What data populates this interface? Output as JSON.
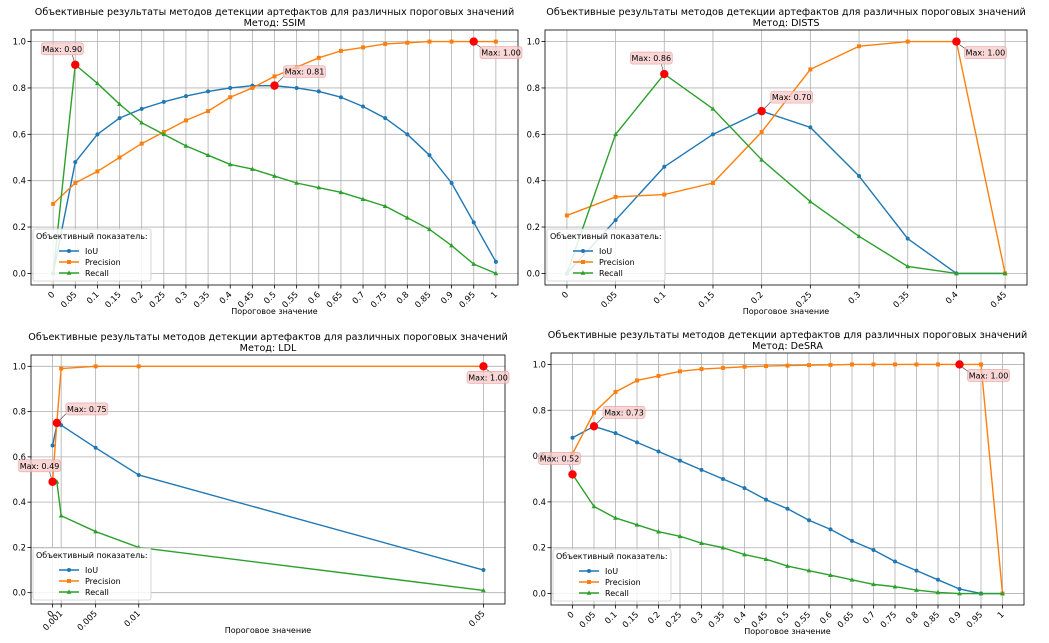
{
  "legend_title": "Объективный показатель:",
  "colors": {
    "IoU": "#1f77b4",
    "Precision": "#ff7f0e",
    "Recall": "#2ca02c",
    "marker": "#ff0000"
  },
  "chart_data": [
    {
      "type": "line",
      "title": "Объективные результаты методов детекции артефактов для различных пороговых значений",
      "subtitle": "Метод: SSIM",
      "xlabel": "Пороговое значение",
      "ylabel": "",
      "x": [
        0,
        0.05,
        0.1,
        0.15,
        0.2,
        0.25,
        0.3,
        0.35,
        0.4,
        0.45,
        0.5,
        0.55,
        0.6,
        0.65,
        0.7,
        0.75,
        0.8,
        0.85,
        0.9,
        0.95,
        1
      ],
      "xlim": [
        -0.05,
        1.05
      ],
      "ylim": [
        -0.05,
        1.05
      ],
      "xticks": [
        0,
        0.05,
        0.1,
        0.15,
        0.2,
        0.25,
        0.3,
        0.35,
        0.4,
        0.45,
        0.5,
        0.55,
        0.6,
        0.65,
        0.7,
        0.75,
        0.8,
        0.85,
        0.9,
        0.95,
        1
      ],
      "xtick_labels": [
        "0",
        "0.05",
        "0.1",
        "0.15",
        "0.2",
        "0.25",
        "0.3",
        "0.35",
        "0.4",
        "0.45",
        "0.5",
        "0.55",
        "0.6",
        "0.65",
        "0.7",
        "0.75",
        "0.8",
        "0.85",
        "0.9",
        "0.95",
        "1"
      ],
      "yticks": [
        0,
        0.2,
        0.4,
        0.6,
        0.8,
        1.0
      ],
      "ytick_labels": [
        "0.0",
        "0.2",
        "0.4",
        "0.6",
        "0.8",
        "1.0"
      ],
      "grid": true,
      "legend_placement": "lower-left",
      "series": [
        {
          "name": "IoU",
          "values": [
            0.0,
            0.48,
            0.6,
            0.67,
            0.71,
            0.74,
            0.765,
            0.785,
            0.8,
            0.81,
            0.81,
            0.8,
            0.785,
            0.76,
            0.72,
            0.67,
            0.6,
            0.51,
            0.39,
            0.22,
            0.05
          ]
        },
        {
          "name": "Precision",
          "values": [
            0.3,
            0.39,
            0.44,
            0.5,
            0.56,
            0.61,
            0.66,
            0.7,
            0.76,
            0.8,
            0.85,
            0.89,
            0.93,
            0.96,
            0.975,
            0.99,
            0.995,
            1.0,
            1.0,
            1.0,
            1.0
          ]
        },
        {
          "name": "Recall",
          "values": [
            0.0,
            0.9,
            0.82,
            0.73,
            0.65,
            0.6,
            0.55,
            0.51,
            0.47,
            0.45,
            0.42,
            0.39,
            0.37,
            0.35,
            0.32,
            0.29,
            0.24,
            0.19,
            0.12,
            0.04,
            0.0
          ]
        }
      ],
      "annotations": [
        {
          "x": 0.05,
          "y": 0.9,
          "text": "Max: 0.90",
          "side": "upper-left"
        },
        {
          "x": 0.5,
          "y": 0.81,
          "text": "Max: 0.81",
          "side": "upper-right"
        },
        {
          "x": 0.95,
          "y": 1.0,
          "text": "Max: 1.00",
          "side": "lower-right"
        }
      ]
    },
    {
      "type": "line",
      "title": "Объективные результаты методов детекции артефактов для различных пороговых значений",
      "subtitle": "Метод: DISTS",
      "xlabel": "Пороговое значение",
      "ylabel": "",
      "x": [
        0,
        0.05,
        0.1,
        0.15,
        0.2,
        0.25,
        0.3,
        0.35,
        0.4,
        0.45
      ],
      "xlim": [
        -0.0225,
        0.4725
      ],
      "ylim": [
        -0.05,
        1.05
      ],
      "xticks": [
        0,
        0.05,
        0.1,
        0.15,
        0.2,
        0.25,
        0.3,
        0.35,
        0.4,
        0.45
      ],
      "xtick_labels": [
        "0",
        "0.05",
        "0.1",
        "0.15",
        "0.2",
        "0.25",
        "0.3",
        "0.35",
        "0.4",
        "0.45"
      ],
      "yticks": [
        0,
        0.2,
        0.4,
        0.6,
        0.8,
        1.0
      ],
      "ytick_labels": [
        "0.0",
        "0.2",
        "0.4",
        "0.6",
        "0.8",
        "1.0"
      ],
      "grid": true,
      "legend_placement": "lower-left",
      "series": [
        {
          "name": "IoU",
          "values": [
            0.0,
            0.23,
            0.46,
            0.6,
            0.7,
            0.63,
            0.42,
            0.15,
            0.0,
            0.0
          ]
        },
        {
          "name": "Precision",
          "values": [
            0.25,
            0.33,
            0.34,
            0.39,
            0.61,
            0.88,
            0.98,
            1.0,
            1.0,
            0.0
          ]
        },
        {
          "name": "Recall",
          "values": [
            0.0,
            0.6,
            0.86,
            0.71,
            0.49,
            0.31,
            0.16,
            0.03,
            0.0,
            0.0
          ]
        }
      ],
      "annotations": [
        {
          "x": 0.1,
          "y": 0.86,
          "text": "Max: 0.86",
          "side": "upper-left"
        },
        {
          "x": 0.2,
          "y": 0.7,
          "text": "Max: 0.70",
          "side": "upper-right"
        },
        {
          "x": 0.4,
          "y": 1.0,
          "text": "Max: 1.00",
          "side": "lower-right"
        }
      ]
    },
    {
      "type": "line",
      "title": "Объективные результаты методов детекции артефактов для различных пороговых значений",
      "subtitle": "Метод: LDL",
      "xlabel": "Пороговое значение",
      "ylabel": "",
      "x": [
        0,
        0.0005,
        0.001,
        0.005,
        0.01,
        0.05
      ],
      "xlim": [
        -0.0025,
        0.0525
      ],
      "ylim": [
        -0.05,
        1.05
      ],
      "xticks": [
        0,
        0.001,
        0.005,
        0.01,
        0.05
      ],
      "xtick_labels": [
        "0",
        "0.001",
        "0.005",
        "0.01",
        "0.05"
      ],
      "yticks": [
        0,
        0.2,
        0.4,
        0.6,
        0.8,
        1.0
      ],
      "ytick_labels": [
        "0.0",
        "0.2",
        "0.4",
        "0.6",
        "0.8",
        "1.0"
      ],
      "grid": true,
      "legend_placement": "lower-left",
      "series": [
        {
          "name": "IoU",
          "values": [
            0.65,
            0.74,
            0.74,
            0.64,
            0.52,
            0.1
          ]
        },
        {
          "name": "Precision",
          "values": [
            0.49,
            0.75,
            0.99,
            1.0,
            1.0,
            1.0
          ]
        },
        {
          "name": "Recall",
          "values": [
            0.49,
            0.49,
            0.34,
            0.27,
            0.2,
            0.01
          ]
        }
      ],
      "annotations": [
        {
          "x": 0.0005,
          "y": 0.75,
          "text": "Max: 0.75",
          "side": "upper-right"
        },
        {
          "x": 0,
          "y": 0.49,
          "text": "Max: 0.49",
          "side": "upper-left"
        },
        {
          "x": 0.05,
          "y": 1.0,
          "text": "Max: 1.00",
          "side": "lower-right"
        }
      ]
    },
    {
      "type": "line",
      "title": "Объективные результаты методов детекции артефактов для различных пороговых значений",
      "subtitle": "Метод: DeSRA",
      "xlabel": "Пороговое значение",
      "ylabel": "",
      "x": [
        0,
        0.05,
        0.1,
        0.15,
        0.2,
        0.25,
        0.3,
        0.35,
        0.4,
        0.45,
        0.5,
        0.55,
        0.6,
        0.65,
        0.7,
        0.75,
        0.8,
        0.85,
        0.9,
        0.95,
        1
      ],
      "xlim": [
        -0.05,
        1.05
      ],
      "ylim": [
        -0.05,
        1.05
      ],
      "xticks": [
        0,
        0.05,
        0.1,
        0.15,
        0.2,
        0.25,
        0.3,
        0.35,
        0.4,
        0.45,
        0.5,
        0.55,
        0.6,
        0.65,
        0.7,
        0.75,
        0.8,
        0.85,
        0.9,
        0.95,
        1
      ],
      "xtick_labels": [
        "0",
        "0.05",
        "0.1",
        "0.15",
        "0.2",
        "0.25",
        "0.3",
        "0.35",
        "0.4",
        "0.45",
        "0.5",
        "0.55",
        "0.6",
        "0.65",
        "0.7",
        "0.75",
        "0.8",
        "0.85",
        "0.9",
        "0.95",
        "1"
      ],
      "yticks": [
        0,
        0.2,
        0.4,
        0.6,
        0.8,
        1.0
      ],
      "ytick_labels": [
        "0.0",
        "0.2",
        "0.4",
        "0.6",
        "0.8",
        "1.0"
      ],
      "grid": true,
      "legend_placement": "lower-left",
      "series": [
        {
          "name": "IoU",
          "values": [
            0.68,
            0.73,
            0.7,
            0.66,
            0.62,
            0.58,
            0.54,
            0.5,
            0.46,
            0.41,
            0.37,
            0.32,
            0.28,
            0.23,
            0.19,
            0.14,
            0.1,
            0.06,
            0.02,
            0.0,
            0.0
          ]
        },
        {
          "name": "Precision",
          "values": [
            0.61,
            0.79,
            0.88,
            0.93,
            0.95,
            0.97,
            0.98,
            0.985,
            0.99,
            0.993,
            0.995,
            0.997,
            0.998,
            1.0,
            1.0,
            1.0,
            1.0,
            1.0,
            1.0,
            1.0,
            0.0
          ]
        },
        {
          "name": "Recall",
          "values": [
            0.52,
            0.38,
            0.33,
            0.3,
            0.27,
            0.25,
            0.22,
            0.2,
            0.17,
            0.15,
            0.12,
            0.1,
            0.08,
            0.06,
            0.04,
            0.03,
            0.015,
            0.005,
            0.0,
            0.0,
            0.0
          ]
        }
      ],
      "annotations": [
        {
          "x": 0.05,
          "y": 0.73,
          "text": "Max: 0.73",
          "side": "upper-right"
        },
        {
          "x": 0,
          "y": 0.52,
          "text": "Max: 0.52",
          "side": "upper-left"
        },
        {
          "x": 0.9,
          "y": 1.0,
          "text": "Max: 1.00",
          "side": "lower-right"
        }
      ]
    }
  ]
}
